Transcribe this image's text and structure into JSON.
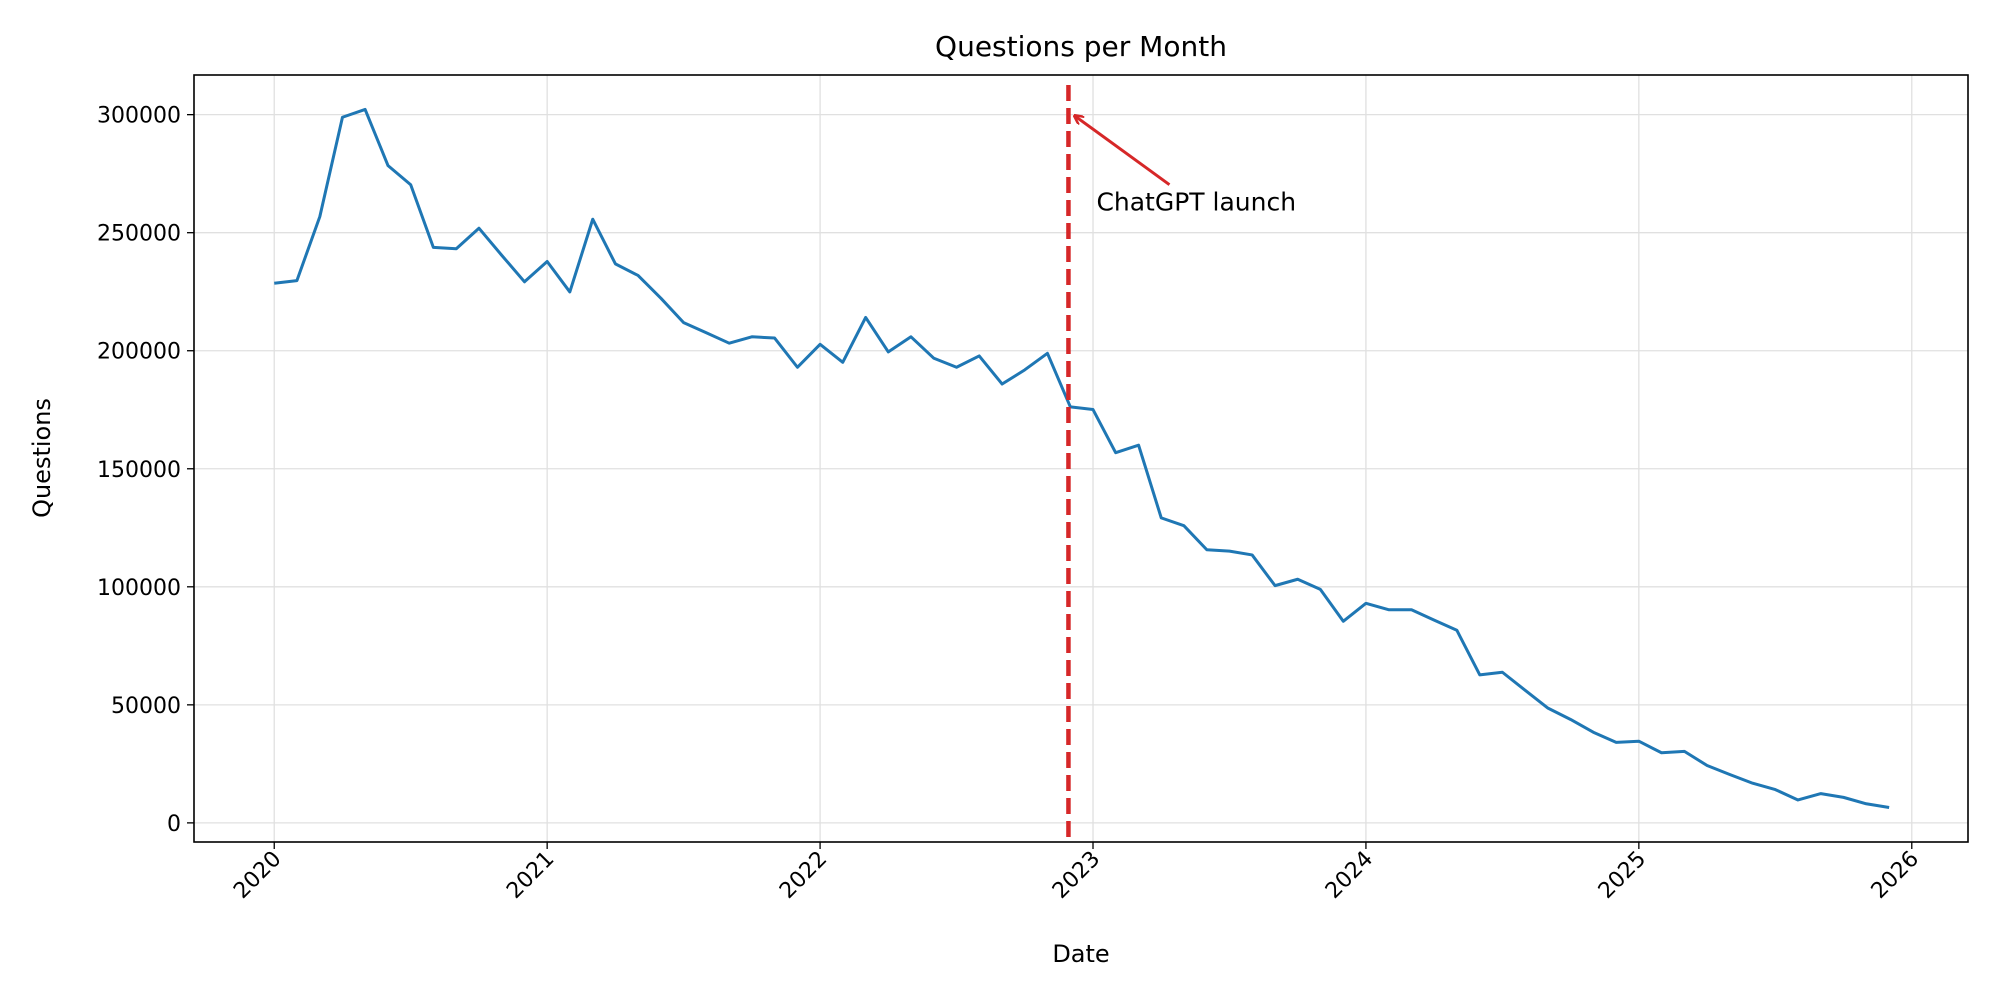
{
  "chart_data": {
    "type": "line",
    "title": "Questions per Month",
    "xlabel": "Date",
    "ylabel": "Questions",
    "x": [
      2020.0,
      2020.083,
      2020.167,
      2020.25,
      2020.333,
      2020.417,
      2020.5,
      2020.583,
      2020.667,
      2020.75,
      2020.833,
      2020.917,
      2021.0,
      2021.083,
      2021.167,
      2021.25,
      2021.333,
      2021.417,
      2021.5,
      2021.583,
      2021.667,
      2021.75,
      2021.833,
      2021.917,
      2022.0,
      2022.083,
      2022.167,
      2022.25,
      2022.333,
      2022.417,
      2022.5,
      2022.583,
      2022.667,
      2022.75,
      2022.833,
      2022.917,
      2023.0,
      2023.083,
      2023.167,
      2023.25,
      2023.333,
      2023.417,
      2023.5,
      2023.583,
      2023.667,
      2023.75,
      2023.833,
      2023.917,
      2024.0,
      2024.083,
      2024.167,
      2024.25,
      2024.333,
      2024.417,
      2024.5,
      2024.583,
      2024.667,
      2024.75,
      2024.833,
      2024.917,
      2025.0,
      2025.083,
      2025.167,
      2025.25,
      2025.333,
      2025.417,
      2025.5,
      2025.583,
      2025.667,
      2025.75,
      2025.833,
      2025.917
    ],
    "values": [
      228600,
      229700,
      256800,
      298900,
      302200,
      278400,
      270300,
      243800,
      243200,
      251900,
      240500,
      229200,
      237800,
      224900,
      255700,
      236800,
      231900,
      222200,
      211900,
      207600,
      203200,
      205900,
      205400,
      193000,
      202700,
      195100,
      214100,
      199500,
      205900,
      196800,
      193000,
      197800,
      185900,
      191900,
      198900,
      176200,
      175100,
      156800,
      160000,
      129200,
      125900,
      115700,
      115100,
      113500,
      100500,
      103200,
      98900,
      85400,
      93000,
      90300,
      90300,
      85900,
      81600,
      62700,
      63800,
      56200,
      48600,
      43800,
      38400,
      34100,
      34600,
      29700,
      30300,
      24300,
      20500,
      16800,
      14100,
      9700,
      12400,
      10800,
      8100,
      6500
    ],
    "color": "#1f77b4",
    "xlim": [
      2019.706,
      2026.206
    ],
    "xticks": [
      2020,
      2021,
      2022,
      2023,
      2024,
      2025,
      2026
    ],
    "ylim": [
      -8100,
      316800
    ],
    "yticks": [
      0,
      50000,
      100000,
      150000,
      200000,
      250000,
      300000
    ],
    "grid": true,
    "vlines": [
      {
        "x": 2022.91,
        "color": "#d62728",
        "style": "dashed"
      }
    ],
    "annotations": [
      {
        "text": "ChatGPT launch",
        "x": 2022.91,
        "y": 300000,
        "color": "#d62728"
      }
    ]
  }
}
